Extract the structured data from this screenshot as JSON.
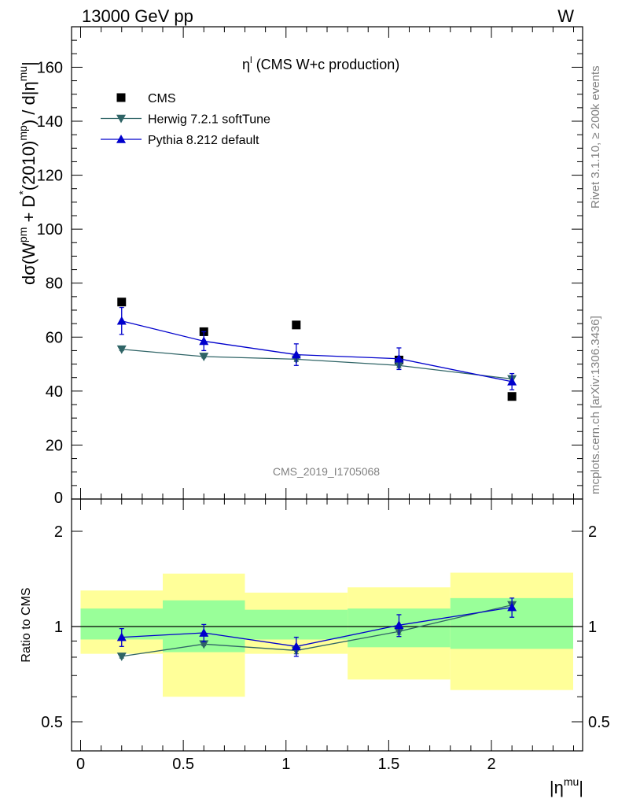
{
  "header": {
    "left": "13000 GeV pp",
    "right": "W"
  },
  "side": {
    "rivet": "Rivet 3.1.10, ≥ 200k events",
    "mcplots": "mcplots.cern.ch [arXiv:1306.3436]"
  },
  "chart_data": [
    {
      "type": "scatter",
      "title": "ηˡ (CMS W+c production)",
      "title_parts": {
        "main": "η",
        "sup": "l",
        "rest": " (CMS W+c production)"
      },
      "watermark": "CMS_2019_I1705068",
      "ylabel": "dσ(W^pm + D^*(2010)^mp) / d|η^mu|",
      "xlim": [
        -0.05,
        2.45
      ],
      "ylim": [
        0,
        175
      ],
      "y_ticks": [
        "20",
        "40",
        "60",
        "80",
        "100",
        "120",
        "140",
        "160"
      ],
      "y_zero_label": "0",
      "legend_position": "top-left",
      "series": [
        {
          "name": "CMS",
          "color": "#000000",
          "marker": "square",
          "x": [
            0.2,
            0.6,
            1.05,
            1.55,
            2.1
          ],
          "y": [
            73,
            62,
            64.5,
            51.5,
            38
          ]
        },
        {
          "name": "Herwig 7.2.1 softTune",
          "color": "#2f6466",
          "marker": "triangle-down",
          "x": [
            0.2,
            0.6,
            1.05,
            1.55,
            2.1
          ],
          "y": [
            55.5,
            52.8,
            51.8,
            49.5,
            44.5
          ],
          "err": [
            0.5,
            0.5,
            0.8,
            0.8,
            0.8
          ]
        },
        {
          "name": "Pythia 8.212 default",
          "color": "#0000cc",
          "marker": "triangle-up",
          "x": [
            0.2,
            0.6,
            1.05,
            1.55,
            2.1
          ],
          "y": [
            66,
            58.5,
            53.5,
            52,
            43.5
          ],
          "err": [
            5,
            3.5,
            4,
            4,
            3
          ]
        }
      ]
    },
    {
      "type": "scatter",
      "ylabel": "Ratio to CMS",
      "xlabel": "|η^mu|",
      "xlabel_parts": {
        "main": "|η",
        "sup": "mu",
        "end": "|"
      },
      "xlim": [
        -0.05,
        2.45
      ],
      "ylim": [
        0.35,
        2.4
      ],
      "y_ticks": [
        "0.5",
        "1",
        "2"
      ],
      "x_ticks": [
        "0",
        "0.5",
        "1",
        "1.5",
        "2"
      ],
      "bands": [
        {
          "x0": 0.0,
          "x1": 0.4,
          "green": [
            0.91,
            1.14
          ],
          "yellow": [
            0.82,
            1.3
          ]
        },
        {
          "x0": 0.4,
          "x1": 0.8,
          "green": [
            0.83,
            1.21
          ],
          "yellow": [
            0.6,
            1.47
          ]
        },
        {
          "x0": 0.8,
          "x1": 1.3,
          "green": [
            0.91,
            1.13
          ],
          "yellow": [
            0.82,
            1.28
          ]
        },
        {
          "x0": 1.3,
          "x1": 1.8,
          "green": [
            0.86,
            1.14
          ],
          "yellow": [
            0.68,
            1.33
          ]
        },
        {
          "x0": 1.8,
          "x1": 2.4,
          "green": [
            0.85,
            1.23
          ],
          "yellow": [
            0.63,
            1.48
          ]
        }
      ],
      "series": [
        {
          "name": "Herwig 7.2.1 softTune",
          "color": "#2f6466",
          "marker": "triangle-down",
          "x": [
            0.2,
            0.6,
            1.05,
            1.55,
            2.1
          ],
          "y": [
            0.805,
            0.88,
            0.84,
            0.965,
            1.17
          ],
          "err": [
            0.01,
            0.01,
            0.02,
            0.02,
            0.02
          ]
        },
        {
          "name": "Pythia 8.212 default",
          "color": "#0000cc",
          "marker": "triangle-up",
          "x": [
            0.2,
            0.6,
            1.05,
            1.55,
            2.1
          ],
          "y": [
            0.925,
            0.955,
            0.865,
            1.01,
            1.15
          ],
          "err": [
            0.06,
            0.06,
            0.06,
            0.08,
            0.08
          ]
        }
      ]
    }
  ]
}
